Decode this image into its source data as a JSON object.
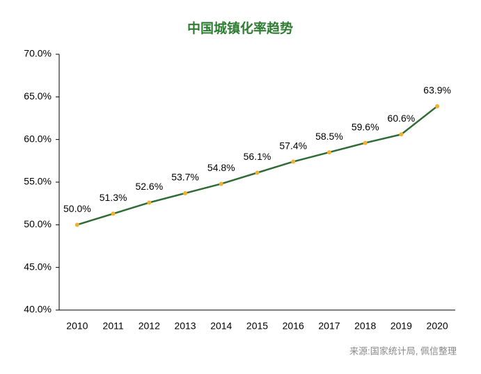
{
  "chart_data": {
    "type": "line",
    "title": "中国城镇化率趋势",
    "categories": [
      "2010",
      "2011",
      "2012",
      "2013",
      "2014",
      "2015",
      "2016",
      "2017",
      "2018",
      "2019",
      "2020"
    ],
    "values": [
      50.0,
      51.3,
      52.6,
      53.7,
      54.8,
      56.1,
      57.4,
      58.5,
      59.6,
      60.6,
      63.9
    ],
    "value_labels": [
      "50.0%",
      "51.3%",
      "52.6%",
      "53.7%",
      "54.8%",
      "56.1%",
      "57.4%",
      "58.5%",
      "59.6%",
      "60.6%",
      "63.9%"
    ],
    "color": "#2e6b35",
    "marker_color": "#f0b030",
    "ylim": [
      40,
      70
    ],
    "yticks": [
      {
        "value": 40,
        "label": "40.0%"
      },
      {
        "value": 45,
        "label": "45.0%"
      },
      {
        "value": 50,
        "label": "50.0%"
      },
      {
        "value": 55,
        "label": "55.0%"
      },
      {
        "value": 60,
        "label": "60.0%"
      },
      {
        "value": 65,
        "label": "65.0%"
      },
      {
        "value": 70,
        "label": "70.0%"
      }
    ],
    "grid": false,
    "note": "来源:国家统计局, 佩信整理"
  }
}
